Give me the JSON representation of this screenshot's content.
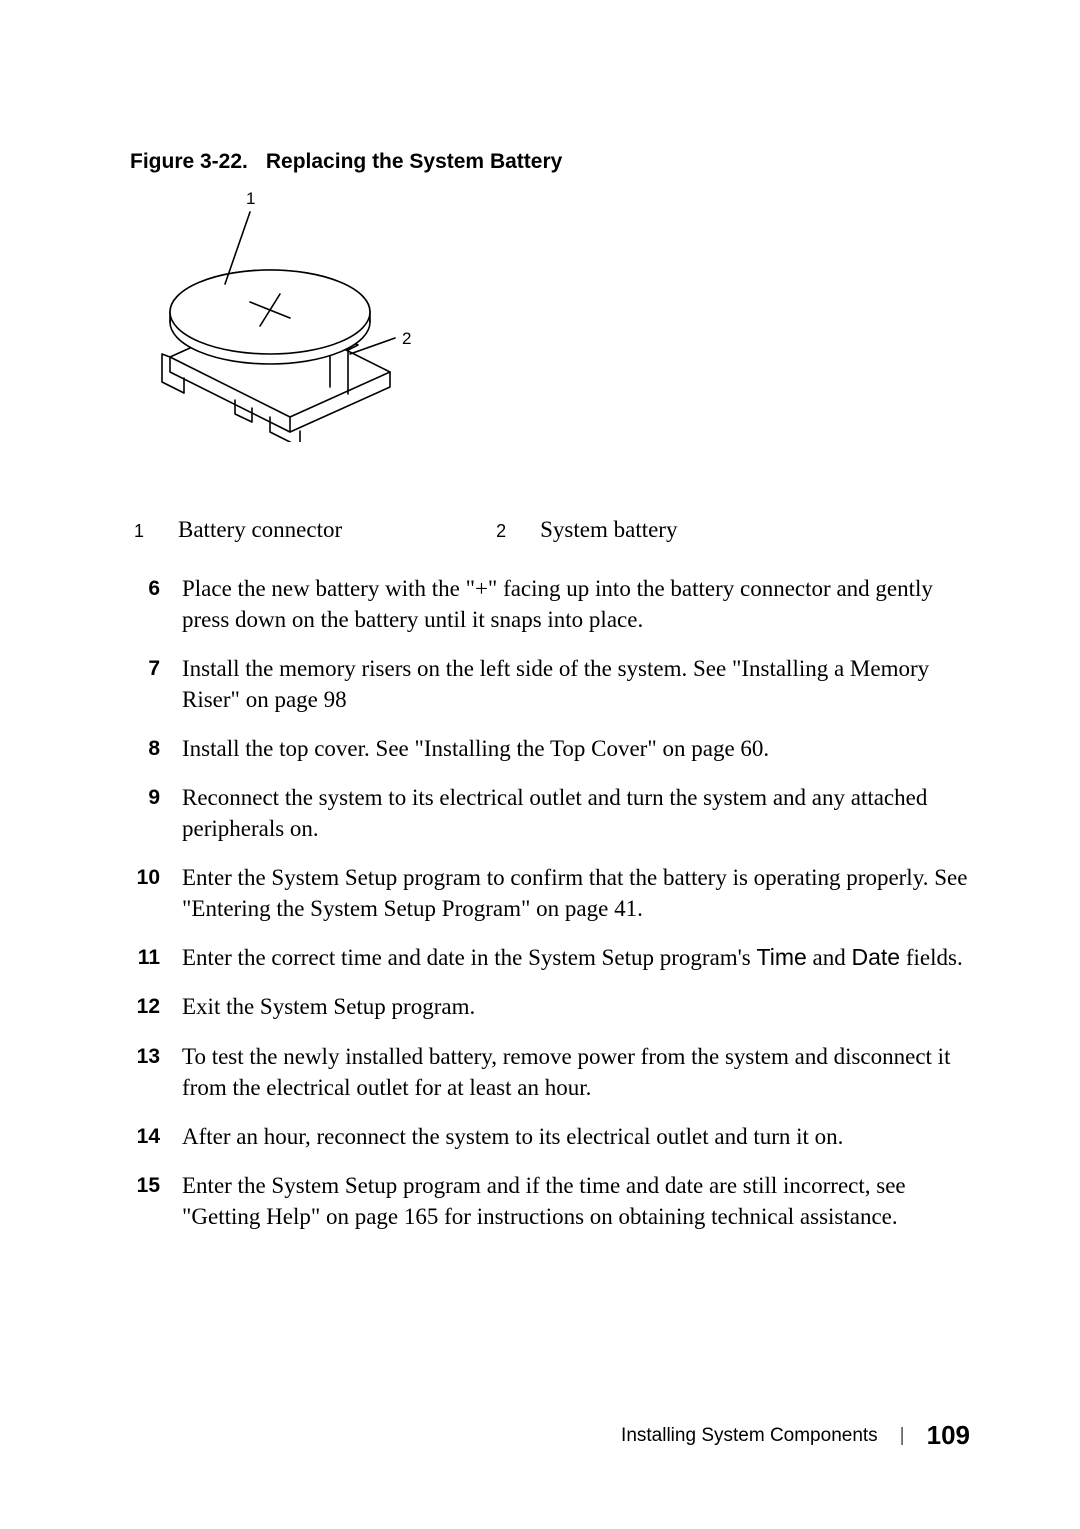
{
  "figure": {
    "number": "Figure 3-22.",
    "title": "Replacing the System Battery",
    "callout1": "1",
    "callout2": "2"
  },
  "legend": {
    "items": [
      {
        "num": "1",
        "text": "Battery connector",
        "gap_after": 150
      },
      {
        "num": "2",
        "text": "System battery",
        "gap_after": 0
      }
    ]
  },
  "steps": [
    {
      "parts": [
        {
          "t": "Place the new battery with the \"+\" facing up into the battery connector and gently press down on the battery until it snaps into place."
        }
      ]
    },
    {
      "parts": [
        {
          "t": "Install the memory risers on the left side of the system. See \"Installing a Memory Riser\" on page 98"
        }
      ]
    },
    {
      "parts": [
        {
          "t": "Install the top cover. See \"Installing the Top Cover\" on page 60."
        }
      ]
    },
    {
      "parts": [
        {
          "t": "Reconnect the system to its electrical outlet and turn the system and any attached peripherals on."
        }
      ]
    },
    {
      "parts": [
        {
          "t": "Enter the System Setup program to confirm that the battery is operating properly. See \"Entering the System Setup Program\" on page 41."
        }
      ]
    },
    {
      "parts": [
        {
          "t": "Enter the correct time and date in the System Setup program's "
        },
        {
          "t": "Time",
          "sans": true
        },
        {
          "t": " and "
        },
        {
          "t": "Date",
          "sans": true
        },
        {
          "t": " fields."
        }
      ]
    },
    {
      "parts": [
        {
          "t": "Exit the System Setup program."
        }
      ]
    },
    {
      "parts": [
        {
          "t": "To test the newly installed battery, remove power from the system and disconnect it from the electrical outlet for at least an hour."
        }
      ]
    },
    {
      "parts": [
        {
          "t": "After an hour, reconnect the system to its electrical outlet and turn it on."
        }
      ]
    },
    {
      "parts": [
        {
          "t": "Enter the System Setup program and if the time and date are still incorrect, see \"Getting Help\" on page 165 for instructions on obtaining technical assistance."
        }
      ]
    }
  ],
  "footer": {
    "section": "Installing System Components",
    "page": "109"
  },
  "svg": {
    "stroke": "#000000",
    "fill_white": "#ffffff",
    "label_font": "Arial, Helvetica, sans-serif"
  }
}
